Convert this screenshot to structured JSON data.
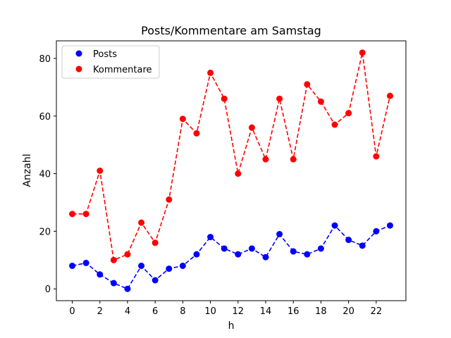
{
  "chart_data": {
    "type": "line",
    "title": "Posts/Kommentare am Samstag",
    "xlabel": "h",
    "ylabel": "Anzahl",
    "x": [
      0,
      1,
      2,
      3,
      4,
      5,
      6,
      7,
      8,
      9,
      10,
      11,
      12,
      13,
      14,
      15,
      16,
      17,
      18,
      19,
      20,
      21,
      22,
      23
    ],
    "xlim": [
      -1.15,
      24.15
    ],
    "ylim": [
      -4.1,
      86.1
    ],
    "xticks": [
      0,
      2,
      4,
      6,
      8,
      10,
      12,
      14,
      16,
      18,
      20,
      22
    ],
    "yticks": [
      0,
      20,
      40,
      60,
      80
    ],
    "grid": false,
    "legend_position": "upper left",
    "series": [
      {
        "name": "Posts",
        "color": "#0000ff",
        "values": [
          8,
          9,
          5,
          2,
          0,
          8,
          3,
          7,
          8,
          12,
          18,
          14,
          12,
          14,
          11,
          19,
          13,
          12,
          14,
          22,
          17,
          15,
          20,
          22
        ]
      },
      {
        "name": "Kommentare",
        "color": "#ff0000",
        "values": [
          26,
          26,
          41,
          10,
          12,
          23,
          16,
          31,
          59,
          54,
          75,
          66,
          40,
          56,
          45,
          66,
          45,
          71,
          65,
          57,
          61,
          82,
          46,
          67
        ]
      }
    ]
  }
}
